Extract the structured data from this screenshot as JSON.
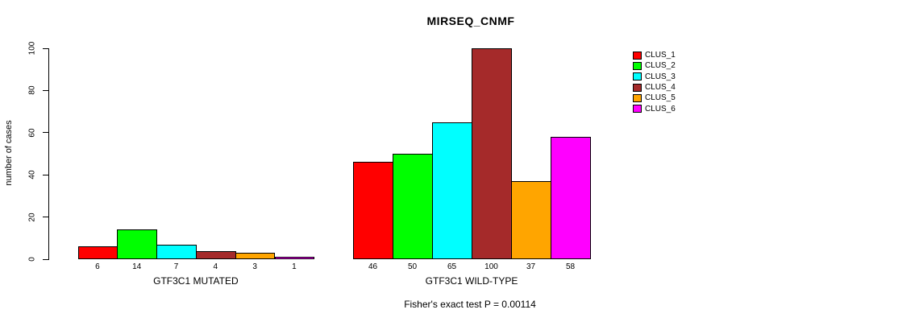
{
  "chart_data": {
    "type": "bar",
    "title": "MIRSEQ_CNMF",
    "ylabel": "number of cases",
    "xlabel": "",
    "ylim": [
      0,
      100
    ],
    "yticks": [
      0,
      20,
      40,
      60,
      80,
      100
    ],
    "grid": false,
    "legend_position": "right-outside",
    "categories": [
      "GTF3C1 MUTATED",
      "GTF3C1 WILD-TYPE"
    ],
    "series": [
      {
        "name": "CLUS_1",
        "color": "#FF0000",
        "values": [
          6,
          46
        ]
      },
      {
        "name": "CLUS_2",
        "color": "#00FF00",
        "values": [
          14,
          50
        ]
      },
      {
        "name": "CLUS_3",
        "color": "#00FFFF",
        "values": [
          7,
          65
        ]
      },
      {
        "name": "CLUS_4",
        "color": "#A52A2A",
        "values": [
          4,
          100
        ]
      },
      {
        "name": "CLUS_5",
        "color": "#FFA500",
        "values": [
          3,
          37
        ]
      },
      {
        "name": "CLUS_6",
        "color": "#FF00FF",
        "values": [
          1,
          58
        ]
      }
    ],
    "bar_value_labels": [
      [
        6,
        14,
        7,
        4,
        3,
        1
      ],
      [
        46,
        50,
        65,
        100,
        37,
        58
      ]
    ],
    "annotation": "Fisher's exact test P = 0.00114",
    "axis_color": "#000000",
    "background_color": "#FFFFFF"
  }
}
